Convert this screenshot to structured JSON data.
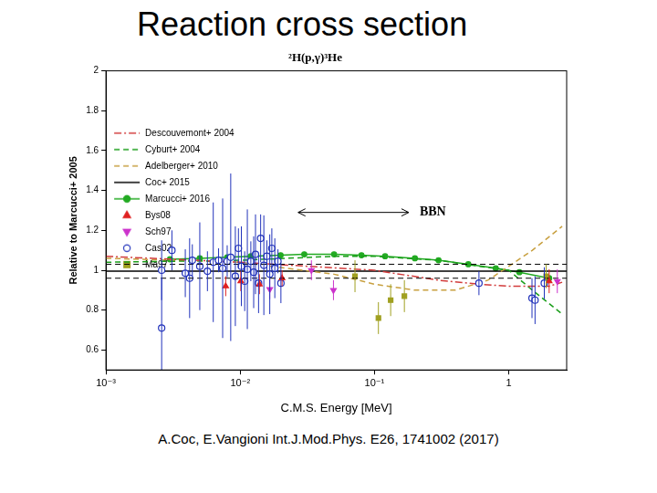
{
  "slide_title": "Reaction cross section",
  "source": "A.Coc, E.Vangioni Int.J.Mod.Phys. E26, 1741002 (2017)",
  "chart_data": {
    "type": "scatter",
    "title": "²H(p,γ)³He",
    "xlabel": "C.M.S. Energy [MeV]",
    "ylabel": "Relative to Marcucci+ 2005",
    "log": "x",
    "grid": false,
    "legend": "top",
    "xlim": [
      0.001,
      2.7
    ],
    "xticks": [
      {
        "value": 0.001,
        "label": "10⁻³"
      },
      {
        "value": 0.01,
        "label": "10⁻²"
      },
      {
        "value": 0.1,
        "label": "10⁻¹"
      },
      1
    ],
    "ylim": [
      0.5,
      2
    ],
    "yticks": [
      0.6,
      0.8,
      1,
      1.2,
      1.4,
      1.6,
      1.8,
      2
    ],
    "annotations": [
      {
        "text": "BBN",
        "x": [
          0.027,
          0.18
        ],
        "y": 1.29
      }
    ],
    "series": [
      {
        "name": "Descouvemont+ 2004",
        "type": "line",
        "color": "#d23c3c",
        "line_style": "dashdot",
        "x": [
          0.001,
          0.01,
          0.1,
          0.3,
          0.6,
          1,
          2,
          2.5
        ],
        "values": [
          1.07,
          1.04,
          1.0,
          0.95,
          0.93,
          0.92,
          0.92,
          0.94
        ]
      },
      {
        "name": "Cyburt+ 2004",
        "type": "line",
        "color": "#1a9e1a",
        "line_style": "dashed",
        "x": [
          0.001,
          0.01,
          0.05,
          0.1,
          0.3,
          0.6,
          1,
          1.5,
          2.5
        ],
        "values": [
          1.04,
          1.05,
          1.07,
          1.07,
          1.05,
          1.02,
          1.0,
          0.9,
          0.78
        ]
      },
      {
        "name": "Adelberger+ 2010",
        "type": "line",
        "color": "#c8a040",
        "line_style": "dashed",
        "x": [
          0.001,
          0.01,
          0.05,
          0.1,
          0.2,
          0.4,
          0.7,
          1,
          1.5,
          2.5
        ],
        "values": [
          1.06,
          1.04,
          0.98,
          0.93,
          0.9,
          0.9,
          0.95,
          1.02,
          1.1,
          1.22
        ]
      },
      {
        "name": "Coc+ 2015",
        "type": "line",
        "color": "#000000",
        "line_style": "solid",
        "x": [
          0.001,
          2.7
        ],
        "values": [
          0.995,
          0.995
        ],
        "errors": [
          0.035,
          0.035
        ]
      },
      {
        "name": "Marcucci+ 2016",
        "type": "line",
        "color": "#22aa22",
        "line_style": "solid",
        "marker": "circle",
        "x": [
          0.003,
          0.005,
          0.008,
          0.012,
          0.02,
          0.03,
          0.05,
          0.08,
          0.12,
          0.2,
          0.3,
          0.5,
          0.8,
          1.2,
          2
        ],
        "values": [
          1.055,
          1.06,
          1.065,
          1.07,
          1.075,
          1.08,
          1.08,
          1.075,
          1.07,
          1.06,
          1.05,
          1.03,
          1.01,
          0.99,
          0.96
        ]
      },
      {
        "name": "Bys08",
        "type": "scatter",
        "color": "#e02020",
        "marker": "triangle",
        "x": [
          0.0078,
          0.0101,
          0.0139,
          0.0205,
          2.0
        ],
        "values": [
          0.92,
          0.945,
          0.93,
          0.96,
          0.945
        ],
        "errors": [
          0.05,
          0.05,
          0.05,
          0.04,
          0.06
        ]
      },
      {
        "name": "Sch97",
        "type": "scatter",
        "color": "#cc33cc",
        "marker": "triangle_down",
        "x": [
          0.0166,
          0.0339,
          0.0495,
          2.3
        ],
        "values": [
          0.905,
          1.0,
          0.9,
          0.945
        ],
        "errors": [
          0.05,
          0.05,
          0.05,
          0.06
        ]
      },
      {
        "name": "Cas02",
        "type": "scatter",
        "color": "#2233bb",
        "marker": "open_circle",
        "x": [
          0.0026,
          0.0026,
          0.0031,
          0.0039,
          0.0042,
          0.0044,
          0.005,
          0.0057,
          0.0063,
          0.0069,
          0.0074,
          0.008,
          0.0085,
          0.0092,
          0.0097,
          0.0102,
          0.0108,
          0.0113,
          0.012,
          0.0126,
          0.013,
          0.0137,
          0.0142,
          0.015,
          0.0158,
          0.0166,
          0.0172,
          0.0181,
          0.0191,
          0.0201,
          0.6,
          1.49,
          1.57,
          1.84
        ],
        "values": [
          0.71,
          1.0,
          1.1,
          0.985,
          0.96,
          1.05,
          1.02,
          0.995,
          1.04,
          1.05,
          1.01,
          1.045,
          1.065,
          0.97,
          1.11,
          1.02,
          0.945,
          1.005,
          1.045,
          0.99,
          1.08,
          0.935,
          1.16,
          1.025,
          1.07,
          0.98,
          1.11,
          1.01,
          1.045,
          0.935,
          0.935,
          0.86,
          0.85,
          0.935
        ],
        "errors": [
          0.25,
          0.15,
          0.1,
          0.12,
          0.2,
          0.08,
          0.22,
          0.1,
          0.3,
          0.06,
          0.35,
          0.08,
          0.42,
          0.25,
          0.1,
          0.2,
          0.15,
          0.3,
          0.1,
          0.18,
          0.2,
          0.15,
          0.12,
          0.25,
          0.08,
          0.2,
          0.1,
          0.15,
          0.06,
          0.1,
          0.06,
          0.1,
          0.12,
          0.08
        ]
      },
      {
        "name": "Ma97",
        "type": "scatter",
        "color": "#a0a020",
        "marker": "square",
        "x": [
          0.0716,
          0.107,
          0.132,
          0.167,
          1.9
        ],
        "values": [
          0.97,
          0.76,
          0.85,
          0.87,
          0.97
        ],
        "errors": [
          0.08,
          0.08,
          0.08,
          0.08,
          0.06
        ]
      }
    ]
  }
}
